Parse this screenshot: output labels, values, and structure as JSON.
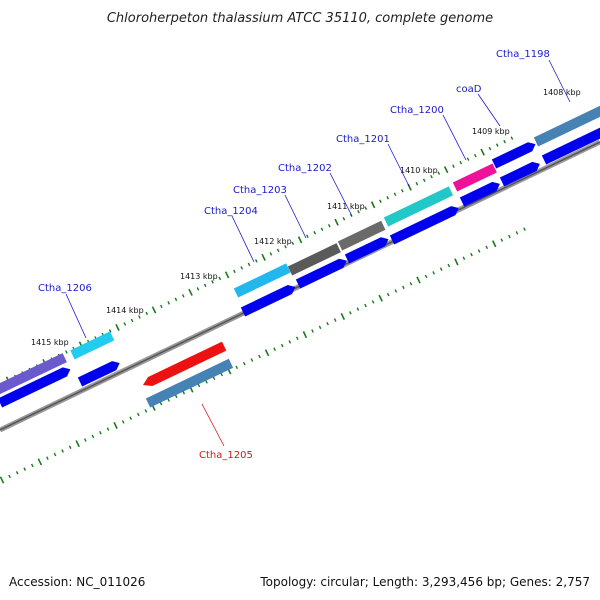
{
  "title": "Chloroherpeton thalassium ATCC 35110, complete genome",
  "footer": {
    "accession": "Accession: NC_011026",
    "stats": "Topology: circular; Length: 3,293,456 bp; Genes: 2,757"
  },
  "kbp_labels": [
    "1408 kbp",
    "1409 kbp",
    "1410 kbp",
    "1411 kbp",
    "1412 kbp",
    "1413 kbp",
    "1414 kbp",
    "1415 kbp"
  ],
  "gene_labels": [
    {
      "name": "Ctha_1198",
      "color": "#1a1acc"
    },
    {
      "name": "coaD",
      "color": "#1a1acc"
    },
    {
      "name": "Ctha_1200",
      "color": "#1a1acc"
    },
    {
      "name": "Ctha_1201",
      "color": "#1a1acc"
    },
    {
      "name": "Ctha_1202",
      "color": "#1a1acc"
    },
    {
      "name": "Ctha_1203",
      "color": "#1a1acc"
    },
    {
      "name": "Ctha_1204",
      "color": "#1a1acc"
    },
    {
      "name": "Ctha_1205",
      "color": "#cc1a1a"
    },
    {
      "name": "Ctha_1206",
      "color": "#1a1acc"
    }
  ],
  "colors": {
    "backbone": "#888888",
    "cds": "#0000ee",
    "tick": "#1a7a1a",
    "gene_label": "#1a1acc",
    "highlight_label": "#cc1a1a"
  }
}
